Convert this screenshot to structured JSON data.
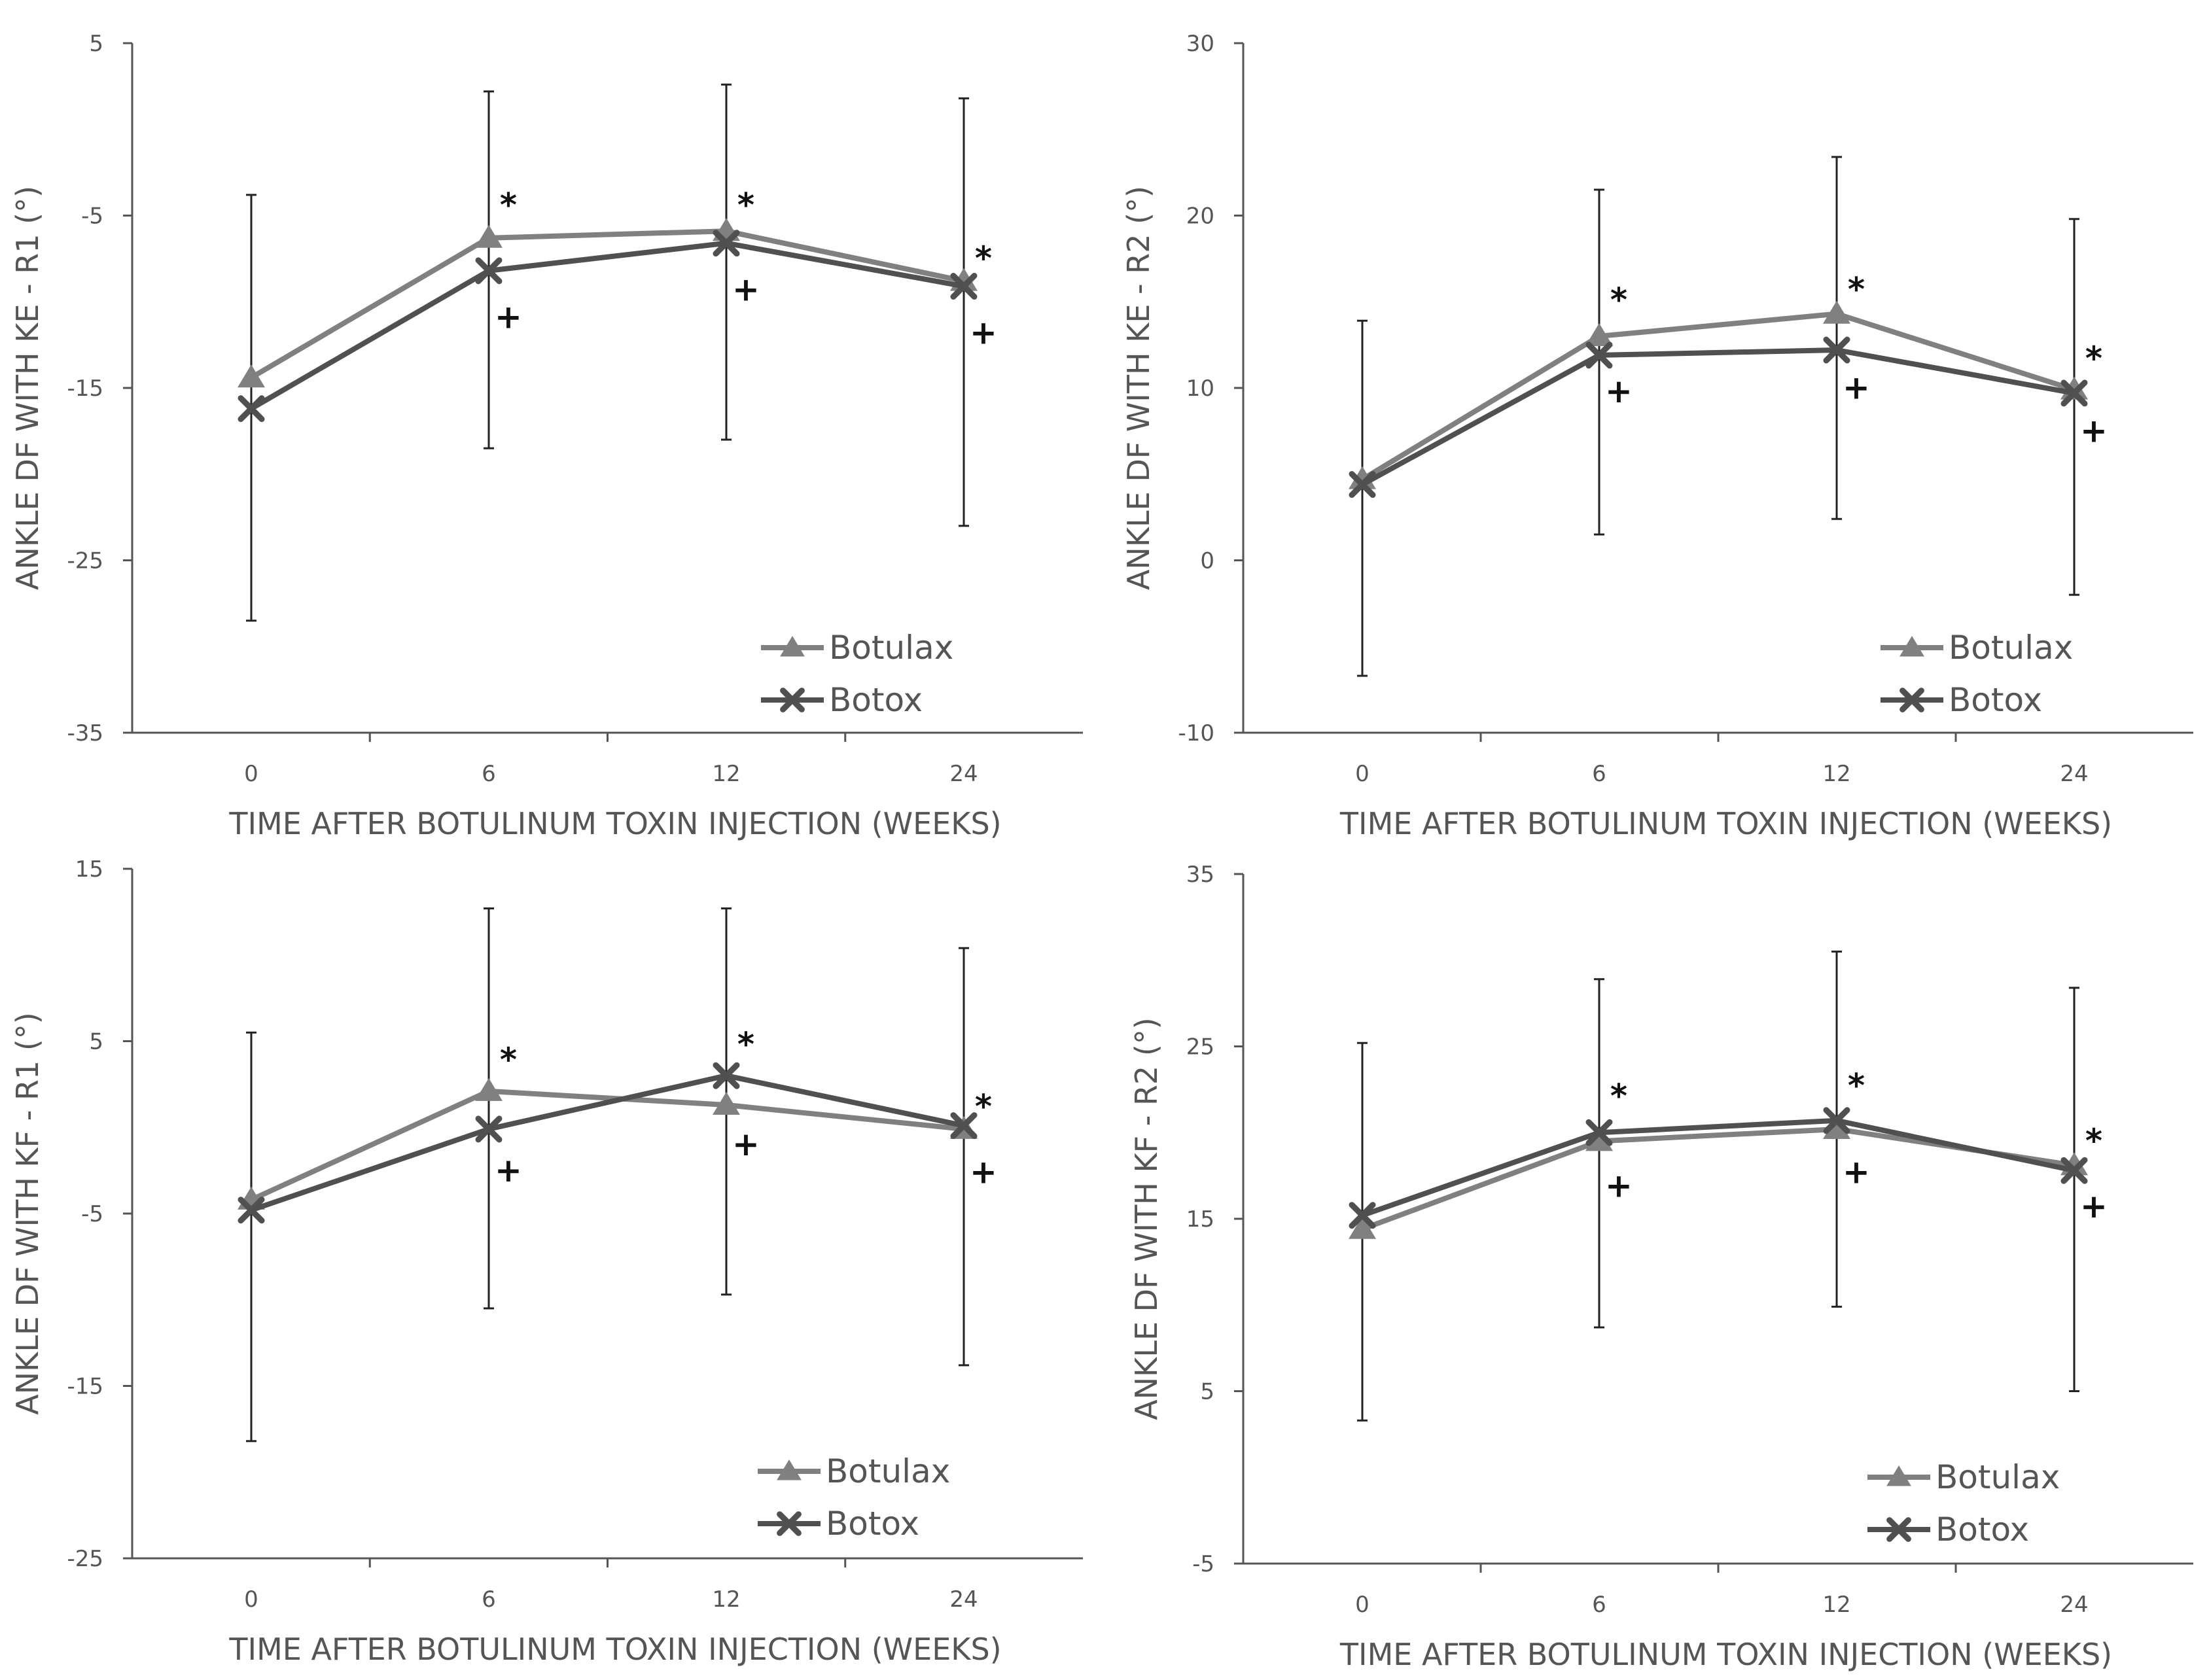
{
  "chart_data": [
    {
      "type": "line",
      "ylabel": "ANKLE DF WITH KE - R1 (°)",
      "xlabel": "TIME AFTER BOTULINUM TOXIN INJECTION (WEEKS)",
      "categories": [
        "0",
        "6",
        "12",
        "24"
      ],
      "ylim": [
        -35,
        5
      ],
      "yticks": [
        "5",
        "-5",
        "-15",
        "-25",
        "-35"
      ],
      "series": [
        {
          "name": "Botulax",
          "marker": "triangle",
          "color": "#808080",
          "values": [
            -14.4,
            -6.3,
            -5.9,
            -8.8
          ],
          "err_low": [
            -28.5,
            -18.5,
            -18.0,
            -23.0
          ],
          "err_high": [
            -3.8,
            2.2,
            2.6,
            1.8
          ]
        },
        {
          "name": "Botox",
          "marker": "x",
          "color": "#505050",
          "values": [
            -16.2,
            -8.2,
            -6.6,
            -9.1
          ],
          "err_low": [
            -28.5,
            -18.5,
            -18.0,
            -23.0
          ],
          "err_high": [
            -3.8,
            2.2,
            2.6,
            1.8
          ]
        }
      ],
      "annotations": [
        {
          "category": 1,
          "text": "*",
          "y": -4.5
        },
        {
          "category": 1,
          "text": "+",
          "y": -11.0
        },
        {
          "category": 2,
          "text": "*",
          "y": -4.5
        },
        {
          "category": 2,
          "text": "+",
          "y": -9.4
        },
        {
          "category": 3,
          "text": "*",
          "y": -7.6
        },
        {
          "category": 3,
          "text": "+",
          "y": -11.9
        }
      ]
    },
    {
      "type": "line",
      "ylabel": "ANKLE DF WITH KE - R2 (°)",
      "xlabel": "TIME AFTER BOTULINUM TOXIN INJECTION (WEEKS)",
      "categories": [
        "0",
        "6",
        "12",
        "24"
      ],
      "ylim": [
        -10,
        30
      ],
      "yticks": [
        "30",
        "20",
        "10",
        "0",
        "-10"
      ],
      "series": [
        {
          "name": "Botulax",
          "marker": "triangle",
          "color": "#808080",
          "values": [
            4.7,
            13.0,
            14.3,
            9.9
          ],
          "err_low": [
            -6.7,
            1.5,
            2.4,
            -2.0
          ],
          "err_high": [
            13.9,
            21.5,
            23.4,
            19.8
          ]
        },
        {
          "name": "Botox",
          "marker": "x",
          "color": "#505050",
          "values": [
            4.4,
            11.9,
            12.2,
            9.7
          ],
          "err_low": [
            -6.7,
            1.5,
            2.4,
            -2.0
          ],
          "err_high": [
            13.9,
            21.5,
            23.4,
            19.8
          ]
        }
      ],
      "annotations": [
        {
          "category": 1,
          "text": "*",
          "y": 15.0
        },
        {
          "category": 1,
          "text": "+",
          "y": 9.7
        },
        {
          "category": 2,
          "text": "*",
          "y": 15.6
        },
        {
          "category": 2,
          "text": "+",
          "y": 9.9
        },
        {
          "category": 3,
          "text": "*",
          "y": 11.6
        },
        {
          "category": 3,
          "text": "+",
          "y": 7.4
        }
      ]
    },
    {
      "type": "line",
      "ylabel": "ANKLE DF WITH KF - R1 (°)",
      "xlabel": "TIME AFTER BOTULINUM TOXIN INJECTION (WEEKS)",
      "categories": [
        "0",
        "6",
        "12",
        "24"
      ],
      "ylim": [
        -25,
        15
      ],
      "yticks": [
        "15",
        "5",
        "-5",
        "-15",
        "-25"
      ],
      "series": [
        {
          "name": "Botulax",
          "marker": "triangle",
          "color": "#808080",
          "values": [
            -4.2,
            2.1,
            1.3,
            -0.1
          ],
          "err_low": [
            -18.2,
            -10.5,
            -9.7,
            -13.8
          ],
          "err_high": [
            5.5,
            12.7,
            12.7,
            10.4
          ]
        },
        {
          "name": "Botox",
          "marker": "x",
          "color": "#505050",
          "values": [
            -4.8,
            -0.1,
            3.0,
            0.1
          ],
          "err_low": [
            -18.2,
            -10.5,
            -9.7,
            -13.8
          ],
          "err_high": [
            5.5,
            12.7,
            12.7,
            10.4
          ]
        }
      ],
      "annotations": [
        {
          "category": 1,
          "text": "*",
          "y": 3.8
        },
        {
          "category": 1,
          "text": "+",
          "y": -2.6
        },
        {
          "category": 2,
          "text": "*",
          "y": 4.7
        },
        {
          "category": 2,
          "text": "+",
          "y": -1.1
        },
        {
          "category": 3,
          "text": "*",
          "y": 1.1
        },
        {
          "category": 3,
          "text": "+",
          "y": -2.7
        }
      ]
    },
    {
      "type": "line",
      "ylabel": "ANKLE DF WITH KF - R2 (°)",
      "xlabel": "TIME AFTER BOTULINUM TOXIN INJECTION (WEEKS)",
      "categories": [
        "0",
        "6",
        "12",
        "24"
      ],
      "ylim": [
        -5,
        35
      ],
      "yticks": [
        "35",
        "25",
        "15",
        "5",
        "-5"
      ],
      "series": [
        {
          "name": "Botulax",
          "marker": "triangle",
          "color": "#808080",
          "values": [
            14.4,
            19.5,
            20.2,
            18.1
          ],
          "err_low": [
            3.3,
            8.7,
            9.9,
            5.0
          ],
          "err_high": [
            25.2,
            28.9,
            30.5,
            28.4
          ]
        },
        {
          "name": "Botox",
          "marker": "x",
          "color": "#505050",
          "values": [
            15.2,
            20.0,
            20.7,
            17.8
          ],
          "err_low": [
            3.3,
            8.7,
            9.9,
            5.0
          ],
          "err_high": [
            25.2,
            28.9,
            30.5,
            28.4
          ]
        }
      ],
      "annotations": [
        {
          "category": 1,
          "text": "*",
          "y": 22.0
        },
        {
          "category": 1,
          "text": "+",
          "y": 16.8
        },
        {
          "category": 2,
          "text": "*",
          "y": 22.6
        },
        {
          "category": 2,
          "text": "+",
          "y": 17.6
        },
        {
          "category": 3,
          "text": "*",
          "y": 19.4
        },
        {
          "category": 3,
          "text": "+",
          "y": 15.6
        }
      ]
    }
  ]
}
